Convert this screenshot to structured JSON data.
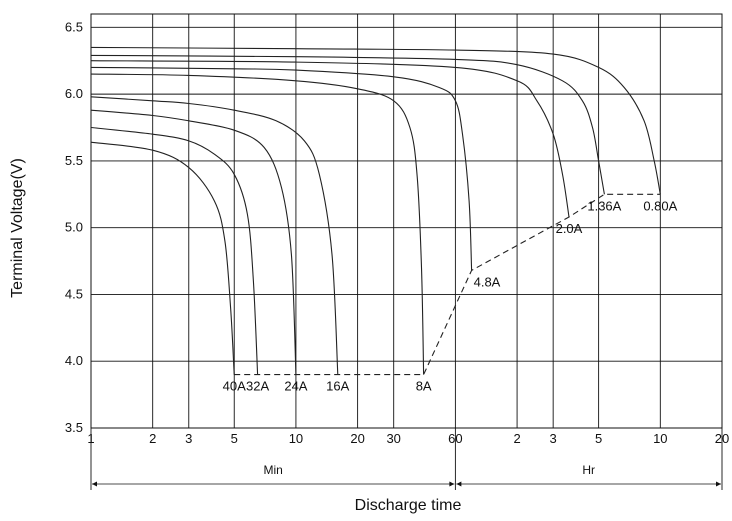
{
  "chart_data": {
    "type": "line",
    "title": "",
    "xlabel": "Discharge time",
    "ylabel": "Terminal Voltage(V)",
    "x_scale": "log",
    "x_unit": "minutes",
    "xlim_minutes": [
      1,
      1200
    ],
    "ylim": [
      3.5,
      6.6
    ],
    "grid": true,
    "x_ticks": [
      {
        "label": "1",
        "minutes": 1
      },
      {
        "label": "2",
        "minutes": 2
      },
      {
        "label": "3",
        "minutes": 3
      },
      {
        "label": "5",
        "minutes": 5
      },
      {
        "label": "10",
        "minutes": 10
      },
      {
        "label": "20",
        "minutes": 20
      },
      {
        "label": "30",
        "minutes": 30
      },
      {
        "label": "60",
        "minutes": 60
      },
      {
        "label": "2",
        "minutes": 120
      },
      {
        "label": "3",
        "minutes": 180
      },
      {
        "label": "5",
        "minutes": 300
      },
      {
        "label": "10",
        "minutes": 600
      },
      {
        "label": "20",
        "minutes": 1200
      }
    ],
    "y_ticks": [
      {
        "label": "3.5",
        "value": 3.5
      },
      {
        "label": "4.0",
        "value": 4.0
      },
      {
        "label": "4.5",
        "value": 4.5
      },
      {
        "label": "5.0",
        "value": 5.0
      },
      {
        "label": "5.5",
        "value": 5.5
      },
      {
        "label": "6.0",
        "value": 6.0
      },
      {
        "label": "6.5",
        "value": 6.5
      }
    ],
    "time_units": [
      {
        "label": "Min",
        "from_minutes": 1,
        "to_minutes": 60
      },
      {
        "label": "Hr",
        "from_minutes": 60,
        "to_minutes": 1200
      }
    ],
    "series": [
      {
        "name": "40A",
        "x": [
          1,
          2,
          3,
          4,
          4.5,
          4.8,
          5
        ],
        "y": [
          5.64,
          5.58,
          5.45,
          5.2,
          4.9,
          4.4,
          3.9
        ]
      },
      {
        "name": "32A",
        "x": [
          1,
          2,
          3,
          4,
          5,
          5.8,
          6.2,
          6.5
        ],
        "y": [
          5.75,
          5.7,
          5.65,
          5.55,
          5.4,
          5.1,
          4.6,
          3.9
        ]
      },
      {
        "name": "24A",
        "x": [
          1,
          2,
          3,
          5,
          7,
          8.5,
          9.5,
          10
        ],
        "y": [
          5.88,
          5.84,
          5.8,
          5.73,
          5.6,
          5.3,
          4.8,
          3.9
        ]
      },
      {
        "name": "16A",
        "x": [
          1,
          2,
          3,
          5,
          8,
          11,
          13,
          15,
          16
        ],
        "y": [
          5.98,
          5.95,
          5.93,
          5.88,
          5.8,
          5.65,
          5.4,
          4.8,
          3.9
        ]
      },
      {
        "name": "8A",
        "x": [
          1,
          3,
          10,
          20,
          30,
          36,
          39,
          41,
          42
        ],
        "y": [
          6.15,
          6.14,
          6.1,
          6.04,
          5.95,
          5.75,
          5.4,
          4.7,
          3.9
        ]
      },
      {
        "name": "4.8A",
        "x": [
          1,
          5,
          10,
          30,
          50,
          60,
          65,
          70,
          72
        ],
        "y": [
          6.2,
          6.19,
          6.18,
          6.13,
          6.05,
          5.95,
          5.7,
          5.2,
          4.68
        ]
      },
      {
        "name": "2.0A",
        "x": [
          1,
          10,
          60,
          120,
          150,
          180,
          200,
          215
        ],
        "y": [
          6.25,
          6.24,
          6.2,
          6.1,
          5.95,
          5.7,
          5.4,
          5.08
        ]
      },
      {
        "name": "1.36A",
        "x": [
          1,
          10,
          60,
          120,
          200,
          250,
          280,
          300,
          320
        ],
        "y": [
          6.29,
          6.28,
          6.26,
          6.22,
          6.1,
          5.95,
          5.75,
          5.5,
          5.25
        ]
      },
      {
        "name": "0.80A",
        "x": [
          1,
          10,
          60,
          180,
          300,
          400,
          500,
          560,
          600
        ],
        "y": [
          6.35,
          6.34,
          6.33,
          6.3,
          6.2,
          6.05,
          5.8,
          5.5,
          5.25
        ]
      }
    ],
    "end_voltage_line": {
      "style": "dashed",
      "x": [
        5,
        42,
        72,
        215,
        320,
        600
      ],
      "y": [
        3.9,
        3.9,
        4.68,
        5.08,
        5.25,
        5.25
      ]
    },
    "curve_labels": [
      {
        "text": "40A",
        "x": 5,
        "y": 3.9,
        "anchor": "below"
      },
      {
        "text": "32A",
        "x": 6.5,
        "y": 3.9,
        "anchor": "below"
      },
      {
        "text": "24A",
        "x": 10,
        "y": 3.9,
        "anchor": "below"
      },
      {
        "text": "16A",
        "x": 16,
        "y": 3.9,
        "anchor": "below"
      },
      {
        "text": "8A",
        "x": 42,
        "y": 3.9,
        "anchor": "below"
      },
      {
        "text": "4.8A",
        "x": 72,
        "y": 4.68,
        "anchor": "below-right"
      },
      {
        "text": "2.0A",
        "x": 215,
        "y": 5.08,
        "anchor": "below"
      },
      {
        "text": "1.36A",
        "x": 320,
        "y": 5.25,
        "anchor": "below"
      },
      {
        "text": "0.80A",
        "x": 600,
        "y": 5.25,
        "anchor": "below"
      }
    ]
  }
}
